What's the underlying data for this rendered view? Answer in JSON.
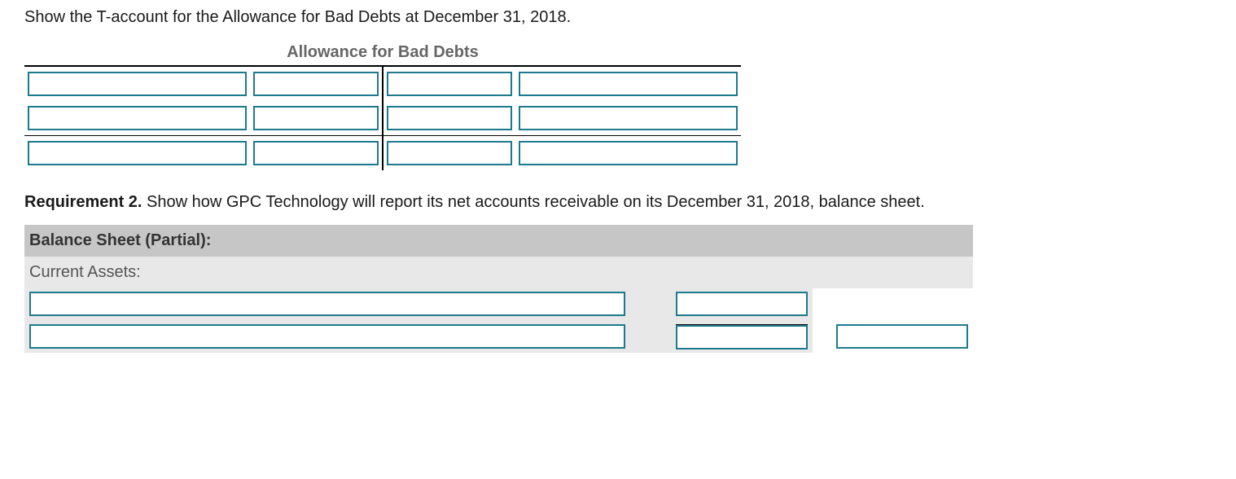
{
  "instruction1": "Show the T-account for the Allowance for Bad Debts at December 31, 2018.",
  "t_account": {
    "title": "Allowance for Bad Debts",
    "title_color": "#666666",
    "border_color_outer": "#000000",
    "input_border_color": "#1d7a8c",
    "col_widths": {
      "desc": 246,
      "amt": 140
    },
    "rows": [
      {
        "left_desc": "",
        "left_amt": "",
        "right_amt": "",
        "right_desc": "",
        "separator_below": false
      },
      {
        "left_desc": "",
        "left_amt": "",
        "right_amt": "",
        "right_desc": "",
        "separator_below": true
      },
      {
        "left_desc": "",
        "left_amt": "",
        "right_amt": "",
        "right_desc": "",
        "separator_below": false
      }
    ]
  },
  "requirement2": {
    "label": "Requirement 2.",
    "text": " Show how GPC Technology will report its net accounts receivable on its December 31, 2018, balance sheet."
  },
  "balance_sheet": {
    "header": "Balance Sheet (Partial):",
    "subheader": "Current Assets:",
    "header_bg": "#c6c6c6",
    "sub_bg": "#e8e8e8",
    "input_border_color": "#1d7a8c",
    "rows": [
      {
        "desc": "",
        "amt1": "",
        "amt2": "",
        "show_amt2": false,
        "amt1_underline_after": false,
        "shaded": true
      },
      {
        "desc": "",
        "amt1": "",
        "amt2": "",
        "show_amt2": true,
        "amt1_underline_after": true,
        "shaded": true
      }
    ]
  }
}
